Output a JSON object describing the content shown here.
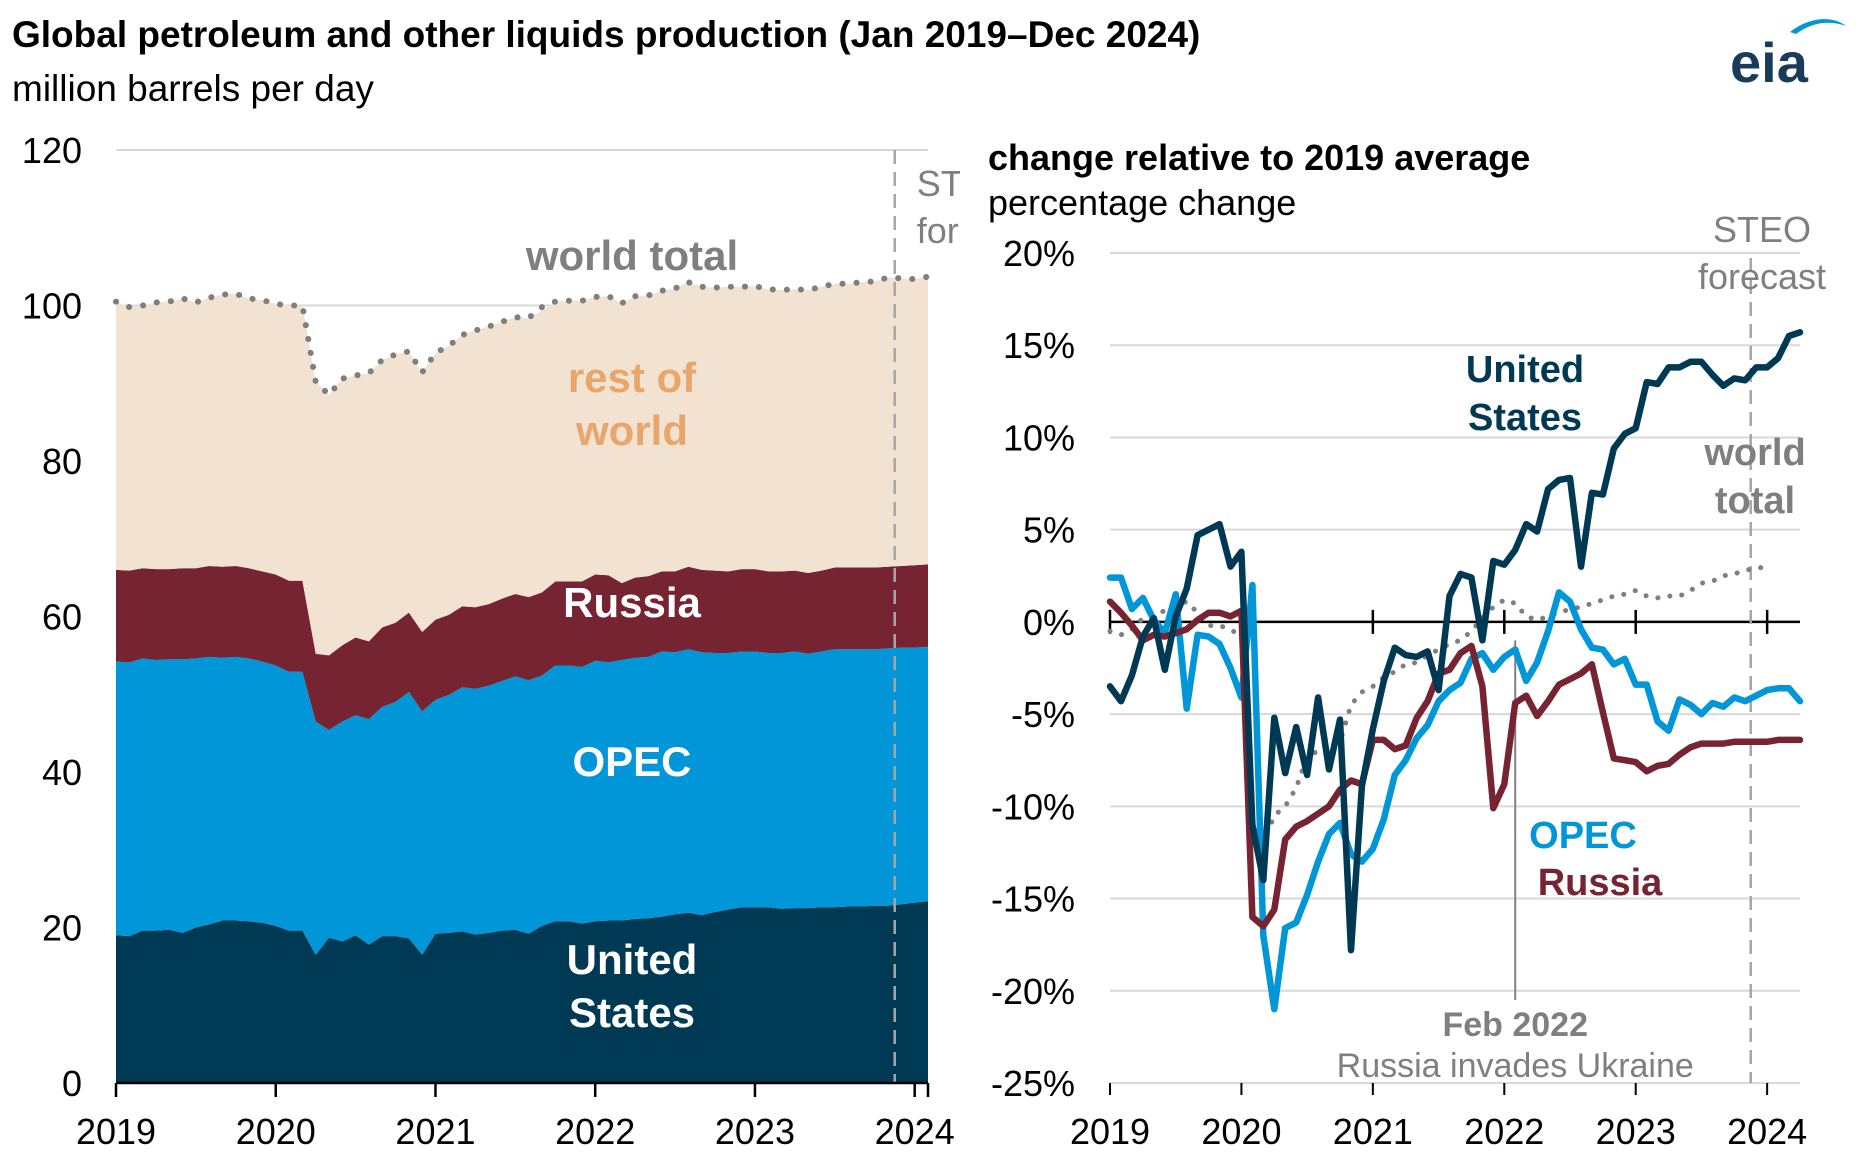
{
  "title": "Global petroleum and other liquids production (Jan 2019–Dec 2024)",
  "subtitle": "million barrels per day",
  "logo_text": "eia",
  "colors": {
    "united_states": "#003953",
    "opec": "#0096d7",
    "russia": "#772432",
    "rest_of_world": "#f2e2d2",
    "rest_of_world_label": "#e8a66c",
    "world_total": "#7f7f7f",
    "grid": "#d9d9d9",
    "forecast_line": "#a6a6a6",
    "event_line": "#808080"
  },
  "chart_data": [
    {
      "type": "area",
      "stacked": true,
      "ylim": [
        0,
        120
      ],
      "y_ticks": [
        "0",
        "20",
        "40",
        "60",
        "80",
        "100",
        "120"
      ],
      "x_ticks": [
        "2019",
        "2020",
        "2021",
        "2022",
        "2023",
        "2024"
      ],
      "x_start": "2019-01",
      "x_end": "2024-12",
      "grid": true,
      "forecast_label": [
        "STEO",
        "forecast"
      ],
      "forecast_start": "2023-11",
      "series": [
        {
          "name": "United States",
          "label_lines": [
            "United",
            "States"
          ],
          "values": [
            19.0,
            18.9,
            19.6,
            19.6,
            19.7,
            19.3,
            20.0,
            20.4,
            20.9,
            20.9,
            20.8,
            20.6,
            20.2,
            19.6,
            19.6,
            16.5,
            18.7,
            18.2,
            19.0,
            17.8,
            18.9,
            18.9,
            18.6,
            16.5,
            19.2,
            19.3,
            19.5,
            19.1,
            19.3,
            19.6,
            19.7,
            19.2,
            20.2,
            20.8,
            20.8,
            20.5,
            20.8,
            20.9,
            20.9,
            21.1,
            21.2,
            21.4,
            21.7,
            21.9,
            21.6,
            22.0,
            22.3,
            22.6,
            22.6,
            22.6,
            22.4,
            22.5,
            22.5,
            22.6,
            22.6,
            22.7,
            22.7,
            22.8,
            22.8,
            23.0,
            23.2,
            23.4
          ],
          "data_labels": false
        },
        {
          "name": "OPEC",
          "label_lines": [
            "OPEC"
          ],
          "values": [
            35.2,
            35.2,
            35.0,
            34.8,
            34.8,
            35.2,
            34.6,
            34.4,
            33.8,
            33.9,
            33.8,
            33.6,
            33.5,
            33.3,
            33.3,
            30.0,
            26.7,
            28.3,
            28.3,
            29.0,
            29.5,
            30.1,
            31.7,
            31.3,
            30.1,
            30.6,
            31.4,
            31.6,
            31.8,
            32.1,
            32.6,
            32.6,
            32.2,
            32.9,
            32.9,
            33.0,
            33.5,
            33.2,
            33.5,
            33.6,
            33.6,
            34.1,
            33.7,
            33.9,
            33.8,
            33.3,
            33.0,
            32.9,
            32.9,
            32.7,
            32.9,
            33.0,
            32.7,
            32.9,
            33.2,
            33.1,
            33.1,
            33.0,
            33.1,
            33.0,
            32.8,
            32.7
          ]
        },
        {
          "name": "Russia",
          "label_lines": [
            "Russia"
          ],
          "values": [
            11.8,
            11.8,
            11.6,
            11.7,
            11.6,
            11.7,
            11.6,
            11.7,
            11.7,
            11.7,
            11.6,
            11.6,
            11.7,
            11.7,
            11.7,
            8.7,
            9.6,
            9.8,
            10.0,
            10.0,
            10.2,
            10.2,
            10.2,
            10.2,
            10.3,
            10.3,
            10.4,
            10.5,
            10.5,
            10.6,
            10.6,
            10.7,
            10.7,
            10.8,
            10.8,
            11.0,
            11.1,
            11.2,
            9.9,
            10.3,
            10.4,
            10.3,
            10.4,
            10.6,
            10.6,
            10.6,
            10.5,
            10.6,
            10.6,
            10.5,
            10.5,
            10.4,
            10.4,
            10.4,
            10.5,
            10.5,
            10.5,
            10.5,
            10.5,
            10.5,
            10.6,
            10.6
          ]
        },
        {
          "name": "rest of world",
          "label_lines": [
            "rest of",
            "world"
          ],
          "values": [
            34.5,
            33.9,
            33.8,
            34.3,
            34.4,
            34.7,
            34.2,
            34.5,
            35.0,
            35.0,
            34.7,
            34.9,
            34.8,
            35.4,
            35.4,
            35.0,
            33.5,
            34.3,
            33.7,
            34.5,
            34.4,
            34.5,
            33.6,
            33.4,
            34.3,
            34.6,
            34.9,
            35.6,
            35.7,
            35.6,
            35.6,
            35.9,
            36.2,
            36.0,
            36.1,
            36.1,
            35.7,
            35.9,
            36.0,
            36.2,
            36.1,
            36.1,
            36.4,
            36.6,
            36.4,
            36.4,
            36.6,
            36.3,
            36.4,
            36.3,
            36.2,
            36.2,
            36.4,
            36.5,
            36.5,
            36.5,
            36.7,
            36.8,
            37.2,
            37.0,
            36.8,
            37.0
          ]
        }
      ],
      "total_series": {
        "name": "world total",
        "values": [
          100.5,
          99.8,
          100.0,
          100.4,
          100.5,
          100.9,
          100.4,
          101.0,
          101.4,
          101.5,
          100.9,
          100.7,
          100.2,
          100.0,
          100.0,
          90.2,
          88.5,
          90.6,
          91.0,
          91.3,
          93.0,
          93.7,
          94.1,
          91.4,
          93.9,
          94.8,
          96.2,
          96.8,
          97.3,
          97.9,
          98.5,
          98.4,
          99.8,
          100.5,
          100.6,
          100.6,
          101.1,
          101.2,
          100.3,
          101.2,
          101.3,
          101.9,
          102.2,
          103.0,
          102.4,
          102.3,
          102.4,
          102.4,
          102.5,
          102.1,
          102.0,
          102.1,
          102.0,
          102.4,
          102.8,
          102.8,
          103.0,
          103.1,
          103.6,
          103.5,
          103.4,
          103.7
        ]
      }
    },
    {
      "type": "line",
      "title": "change relative to 2019 average",
      "subtitle": "percentage change",
      "ylim": [
        -25,
        20
      ],
      "y_ticks": [
        "20%",
        "15%",
        "10%",
        "5%",
        "0%",
        "-5%",
        "-10%",
        "-15%",
        "-20%",
        "-25%"
      ],
      "x_ticks": [
        "2019",
        "2020",
        "2021",
        "2022",
        "2023",
        "2024"
      ],
      "x_start": "2019-01",
      "x_end": "2024-12",
      "grid": true,
      "forecast_label": [
        "STEO",
        "forecast"
      ],
      "forecast_start": "2023-11",
      "event": {
        "date": "2022-02",
        "label": "Feb 2022",
        "sublabel": "Russia invades Ukraine"
      },
      "series": [
        {
          "name": "United States",
          "label_lines": [
            "United",
            "States"
          ],
          "values": [
            -3.5,
            -4.3,
            -2.9,
            -0.8,
            0.2,
            -2.6,
            0.3,
            1.8,
            4.7,
            5.0,
            5.3,
            3.0,
            3.8,
            -11.0,
            -14.0,
            -5.2,
            -8.2,
            -5.7,
            -8.3,
            -4.1,
            -8.0,
            -5.3,
            -17.8,
            -8.9,
            -5.8,
            -3.2,
            -1.4,
            -1.8,
            -1.9,
            -1.6,
            -3.7,
            1.4,
            2.6,
            2.4,
            -1.0,
            3.3,
            3.1,
            3.9,
            5.3,
            4.9,
            7.2,
            7.7,
            7.8,
            3.0,
            7.0,
            6.9,
            9.4,
            10.2,
            10.5,
            13.0,
            12.9,
            13.8,
            13.8,
            14.1,
            14.1,
            13.4,
            12.8,
            13.2,
            13.1,
            13.8,
            13.8,
            14.3,
            15.5,
            15.7
          ],
          "highlight_indices": []
        },
        {
          "name": "OPEC",
          "label_lines": [
            "OPEC"
          ],
          "values": [
            2.4,
            2.4,
            0.7,
            1.3,
            0.1,
            -0.6,
            1.5,
            -4.7,
            -0.7,
            -0.8,
            -1.2,
            -2.5,
            -4.1,
            2.0,
            -17.0,
            -21.0,
            -16.6,
            -16.3,
            -14.8,
            -13.0,
            -11.5,
            -10.9,
            -12.6,
            -13.0,
            -12.3,
            -10.7,
            -8.3,
            -7.5,
            -6.3,
            -5.6,
            -4.3,
            -3.7,
            -3.3,
            -2.0,
            -1.7,
            -2.6,
            -1.9,
            -1.5,
            -3.2,
            -2.2,
            -0.5,
            1.6,
            1.1,
            -0.4,
            -1.4,
            -1.5,
            -2.3,
            -2.0,
            -3.4,
            -3.4,
            -5.4,
            -5.9,
            -4.2,
            -4.5,
            -5.0,
            -4.4,
            -4.6,
            -4.1,
            -4.3,
            -4.0,
            -3.7,
            -3.6,
            -3.6,
            -4.3
          ]
        },
        {
          "name": "Russia",
          "label_lines": [
            "Russia"
          ],
          "values": [
            1.1,
            0.5,
            -0.2,
            -1.0,
            -0.7,
            -0.8,
            -0.6,
            -0.4,
            0.1,
            0.5,
            0.5,
            0.3,
            0.6,
            -16.0,
            -16.5,
            -15.6,
            -11.8,
            -11.1,
            -10.8,
            -10.4,
            -10.0,
            -9.1,
            -8.6,
            -8.8,
            -6.4,
            -6.4,
            -6.9,
            -6.7,
            -5.2,
            -4.3,
            -2.8,
            -2.6,
            -1.7,
            -1.3,
            -3.5,
            -10.1,
            -8.8,
            -4.4,
            -4.0,
            -5.1,
            -4.3,
            -3.4,
            -3.1,
            -2.8,
            -2.3,
            -4.9,
            -7.4,
            -7.5,
            -7.6,
            -8.1,
            -7.8,
            -7.7,
            -7.2,
            -6.8,
            -6.6,
            -6.6,
            -6.6,
            -6.5,
            -6.5,
            -6.5,
            -6.5,
            -6.4,
            -6.4,
            -6.4
          ]
        },
        {
          "name": "world total",
          "label_lines": [
            "world",
            "total"
          ],
          "values": [
            -0.5,
            -0.7,
            -0.4,
            0.2,
            0.4,
            0.6,
            0.9,
            1.1,
            0.5,
            -0.2,
            -0.2,
            -0.4,
            -0.8,
            -11.0,
            -12.0,
            -10.5,
            -10.0,
            -9.0,
            -7.3,
            -7.0,
            -6.5,
            -6.5,
            -4.5,
            -3.8,
            -3.5,
            -3.0,
            -2.7,
            -2.3,
            -2.2,
            -1.8,
            -1.5,
            -1.2,
            -1.0,
            -0.5,
            0.2,
            0.8,
            1.2,
            1.0,
            0.3,
            0.1,
            0.3,
            0.5,
            0.7,
            0.8,
            1.0,
            1.2,
            1.4,
            1.5,
            1.7,
            1.4,
            1.3,
            1.4,
            1.4,
            1.7,
            2.1,
            2.2,
            2.5,
            2.6,
            2.8,
            2.9,
            3.0
          ]
        }
      ]
    }
  ]
}
